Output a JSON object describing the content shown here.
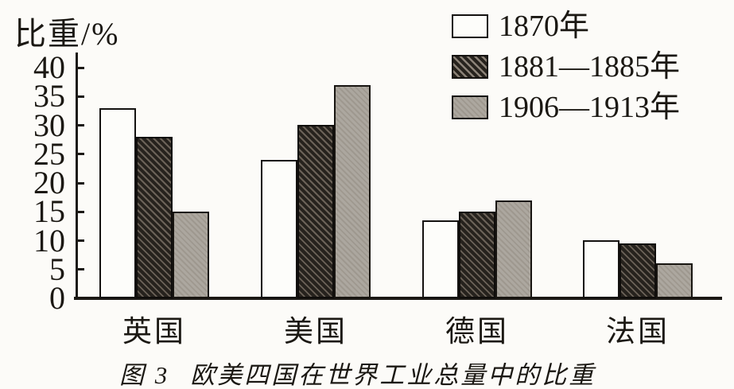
{
  "page": {
    "background": "#fcfbf8"
  },
  "y_axis_title": "比重/%",
  "caption": {
    "fig_label": "图 3",
    "fig_title": "欧美四国在世界工业总量中的比重"
  },
  "legend": {
    "position": "top-right",
    "items": [
      {
        "label": "1870年",
        "style": "white-outlined"
      },
      {
        "label": "1881—1885年",
        "style": "dark-diagonal-hatch"
      },
      {
        "label": "1906—1913年",
        "style": "solid-gray"
      }
    ]
  },
  "colors": {
    "axis": "#1c1915",
    "bar_border": "#141210",
    "hatch_dark": "#26221d",
    "gray_fill": "#a9a49d",
    "background": "#fcfbf8"
  },
  "chart_data": {
    "type": "bar",
    "title": "图 3 欧美四国在世界工业总量中的比重",
    "xlabel": "",
    "ylabel": "比重/%",
    "ylim": [
      0,
      40
    ],
    "yticks": [
      0,
      5,
      10,
      15,
      20,
      25,
      30,
      35,
      40
    ],
    "grid": false,
    "legend_position": "top-right",
    "categories": [
      "英国",
      "美国",
      "德国",
      "法国"
    ],
    "series": [
      {
        "name": "1870年",
        "values": [
          33,
          24,
          13.5,
          10
        ]
      },
      {
        "name": "1881—1885年",
        "values": [
          28,
          30,
          15,
          9.5
        ]
      },
      {
        "name": "1906—1913年",
        "values": [
          15,
          37,
          17,
          6
        ]
      }
    ]
  }
}
